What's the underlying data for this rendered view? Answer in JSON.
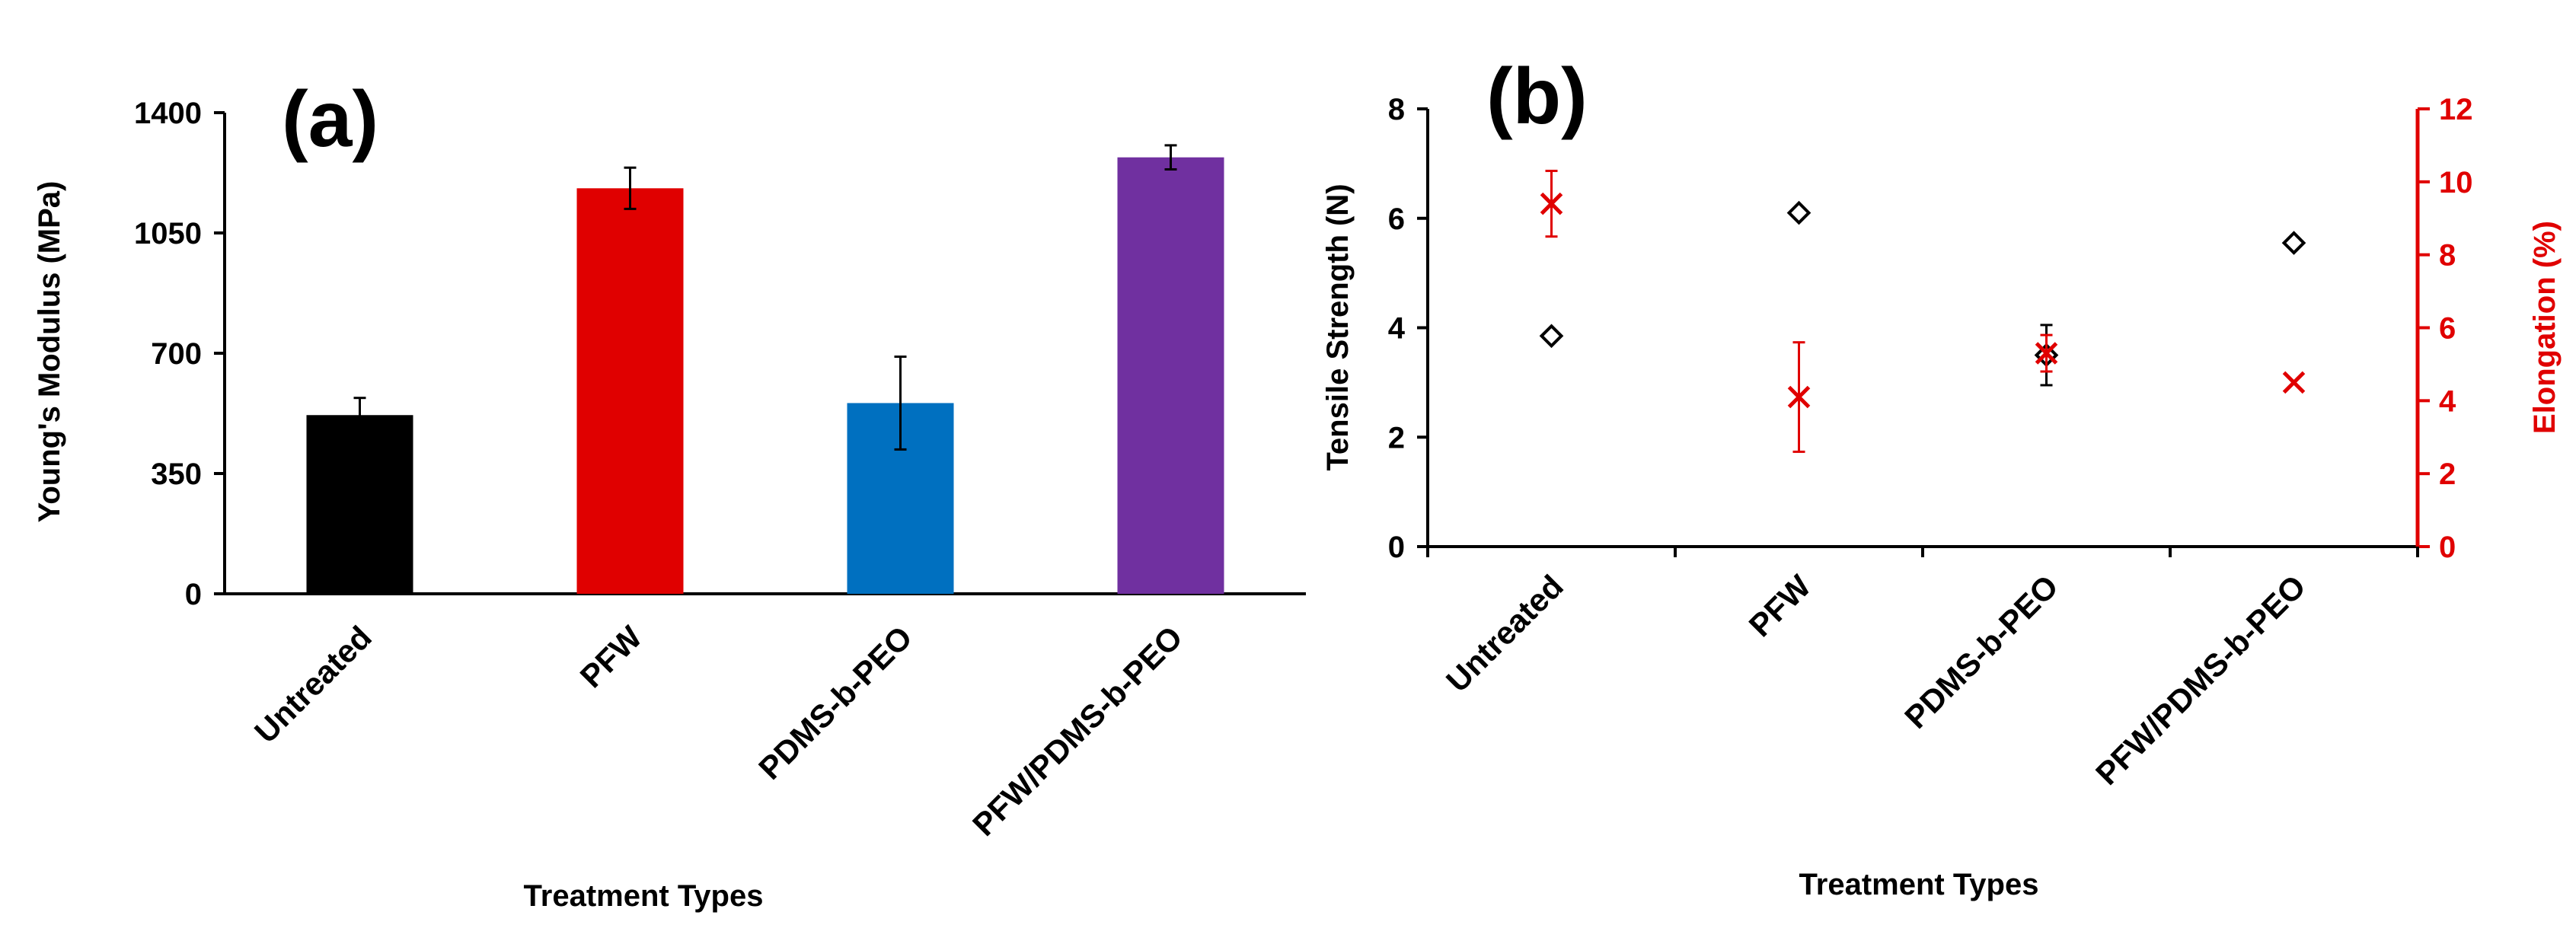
{
  "chart_data": [
    {
      "id": "a",
      "panel_label": "(a)",
      "type": "bar",
      "title": "",
      "xlabel": "Treatment Types",
      "ylabel": "Young's Modulus (MPa)",
      "ylim": [
        0,
        1400
      ],
      "yticks": [
        0,
        350,
        700,
        1050,
        1400
      ],
      "categories": [
        "Untreated",
        "PFW",
        "PDMS-b-PEO",
        "PFW/PDMS-b-PEO"
      ],
      "values": [
        520,
        1180,
        555,
        1270
      ],
      "errors": [
        50,
        60,
        135,
        35
      ],
      "colors": [
        "#000000",
        "#e00000",
        "#0070c0",
        "#7030a0"
      ],
      "legend": "none",
      "grid": false
    },
    {
      "id": "b",
      "panel_label": "(b)",
      "type": "scatter",
      "title": "",
      "xlabel": "Treatment Types",
      "ylabel": "Tensile Strength (N)",
      "ylim": [
        0,
        8
      ],
      "yticks": [
        0,
        2,
        4,
        6,
        8
      ],
      "y2label": "Elongation (%)",
      "y2lim": [
        0,
        12
      ],
      "y2ticks": [
        0,
        2,
        4,
        6,
        8,
        10,
        12
      ],
      "categories": [
        "Untreated",
        "PFW",
        "PDMS-b-PEO",
        "PFW/PDMS-b-PEO"
      ],
      "series": [
        {
          "name": "Tensile Strength",
          "axis": "left",
          "marker": "diamond",
          "color": "#000000",
          "values": [
            3.85,
            6.1,
            3.5,
            5.55
          ],
          "errors": [
            0,
            0,
            0.55,
            0
          ]
        },
        {
          "name": "Elongation",
          "axis": "right",
          "marker": "x",
          "color": "#e00000",
          "values": [
            9.4,
            4.1,
            5.3,
            4.5
          ],
          "errors": [
            0.9,
            1.5,
            0.5,
            0
          ]
        }
      ],
      "legend": "none",
      "grid": false
    }
  ],
  "colors": {
    "axis": "#000000",
    "secondary_axis": "#e00000"
  }
}
